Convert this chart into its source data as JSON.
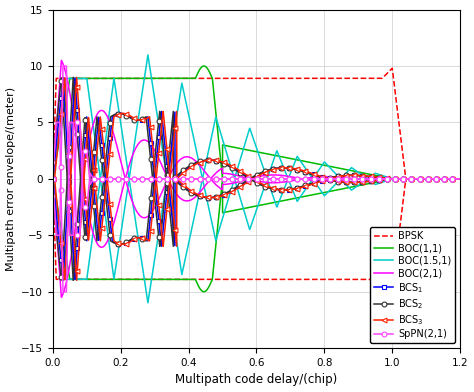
{
  "xlabel": "Multipath code delay/(chip)",
  "ylabel": "Multipath error envelope/(meter)",
  "xlim": [
    0,
    1.2
  ],
  "ylim": [
    -15,
    15
  ],
  "xticks": [
    0,
    0.2,
    0.4,
    0.6,
    0.8,
    1.0,
    1.2
  ],
  "yticks": [
    -15,
    -10,
    -5,
    0,
    5,
    10,
    15
  ],
  "colors": {
    "BPSK": "#FF0000",
    "BOC11": "#00BB00",
    "BOC151": "#00CCCC",
    "BOC21": "#FF00FF",
    "BCS1": "#0000FF",
    "BCS2": "#333333",
    "BCS3": "#FF2200",
    "SpPN": "#FF44FF"
  },
  "figsize": [
    4.74,
    3.92
  ],
  "dpi": 100
}
